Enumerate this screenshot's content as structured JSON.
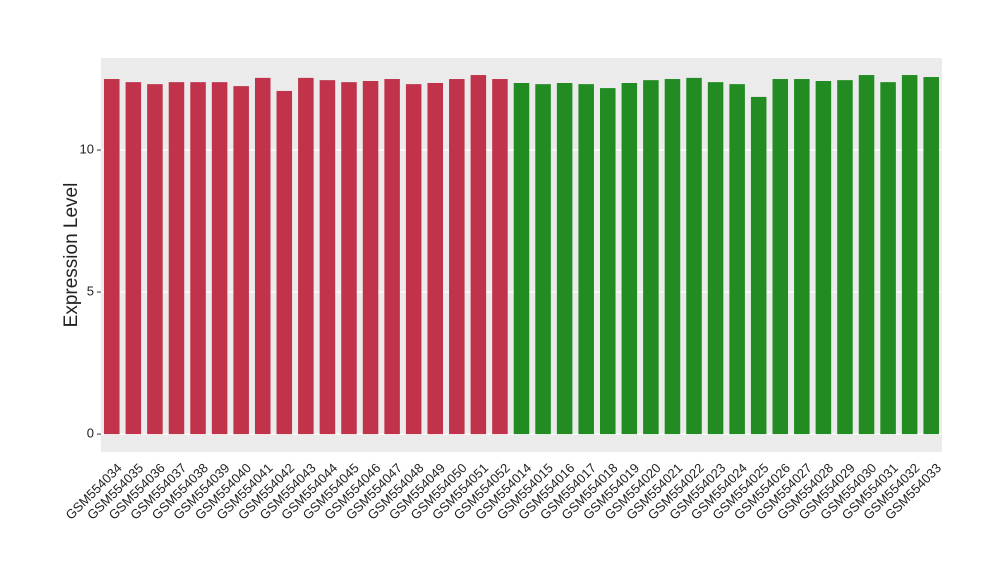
{
  "chart_data": {
    "type": "bar",
    "y_label": "Expression Level",
    "categories": [
      "GSM554034",
      "GSM554035",
      "GSM554036",
      "GSM554037",
      "GSM554038",
      "GSM554039",
      "GSM554040",
      "GSM554041",
      "GSM554042",
      "GSM554043",
      "GSM554044",
      "GSM554045",
      "GSM554046",
      "GSM554047",
      "GSM554048",
      "GSM554049",
      "GSM554050",
      "GSM554051",
      "GSM554052",
      "GSM554014",
      "GSM554015",
      "GSM554016",
      "GSM554017",
      "GSM554018",
      "GSM554019",
      "GSM554020",
      "GSM554021",
      "GSM554022",
      "GSM554023",
      "GSM554024",
      "GSM554025",
      "GSM554026",
      "GSM554027",
      "GSM554028",
      "GSM554029",
      "GSM554030",
      "GSM554031",
      "GSM554032",
      "GSM554033"
    ],
    "values": [
      12.5,
      12.39,
      12.32,
      12.39,
      12.39,
      12.39,
      12.25,
      12.54,
      12.08,
      12.54,
      12.46,
      12.39,
      12.43,
      12.5,
      12.32,
      12.36,
      12.5,
      12.64,
      12.5,
      12.36,
      12.32,
      12.36,
      12.32,
      12.18,
      12.36,
      12.46,
      12.5,
      12.54,
      12.39,
      12.32,
      11.87,
      12.5,
      12.5,
      12.43,
      12.46,
      12.64,
      12.39,
      12.64,
      12.57
    ],
    "colors": [
      "#c0334a",
      "#c0334a",
      "#c0334a",
      "#c0334a",
      "#c0334a",
      "#c0334a",
      "#c0334a",
      "#c0334a",
      "#c0334a",
      "#c0334a",
      "#c0334a",
      "#c0334a",
      "#c0334a",
      "#c0334a",
      "#c0334a",
      "#c0334a",
      "#c0334a",
      "#c0334a",
      "#c0334a",
      "#228b22",
      "#228b22",
      "#228b22",
      "#228b22",
      "#228b22",
      "#228b22",
      "#228b22",
      "#228b22",
      "#228b22",
      "#228b22",
      "#228b22",
      "#228b22",
      "#228b22",
      "#228b22",
      "#228b22",
      "#228b22",
      "#228b22",
      "#228b22",
      "#228b22",
      "#228b22"
    ],
    "ylim": [
      -0.63,
      13.24
    ],
    "yticks": [
      0,
      5,
      10
    ],
    "grid": true
  }
}
